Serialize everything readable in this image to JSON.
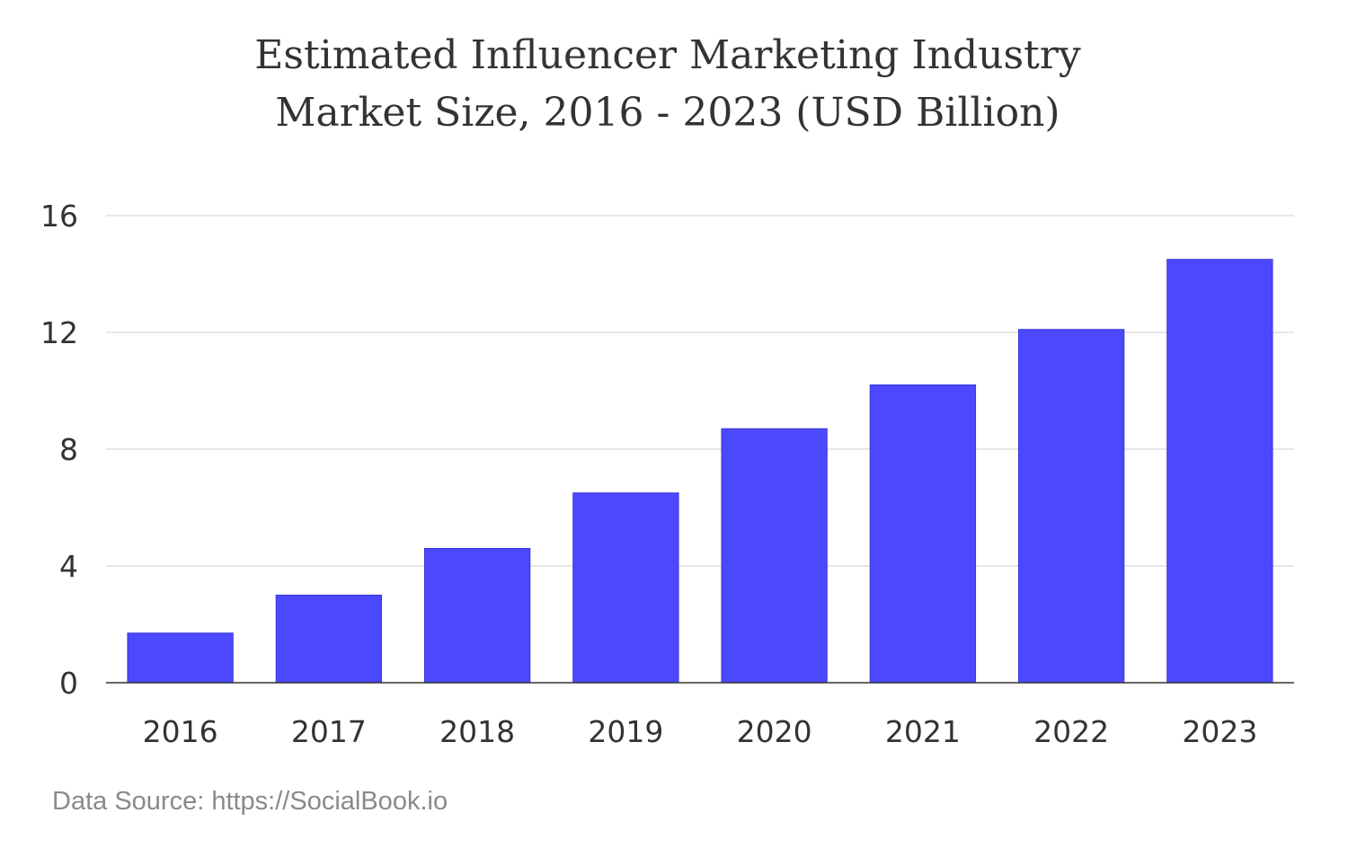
{
  "chart_data": {
    "type": "bar",
    "title_lines": [
      "Estimated Influencer Marketing Industry",
      "Market Size, 2016 - 2023 (USD Billion)"
    ],
    "categories": [
      "2016",
      "2017",
      "2018",
      "2019",
      "2020",
      "2021",
      "2022",
      "2023"
    ],
    "values": [
      1.7,
      3.0,
      4.6,
      6.5,
      8.7,
      10.2,
      12.1,
      14.5
    ],
    "ylim": [
      0,
      16
    ],
    "y_ticks": [
      "0",
      "4",
      "8",
      "12",
      "16"
    ],
    "grid": true,
    "bar_color": "#4b48ff",
    "source": "Data Source: https://SocialBook.io"
  }
}
